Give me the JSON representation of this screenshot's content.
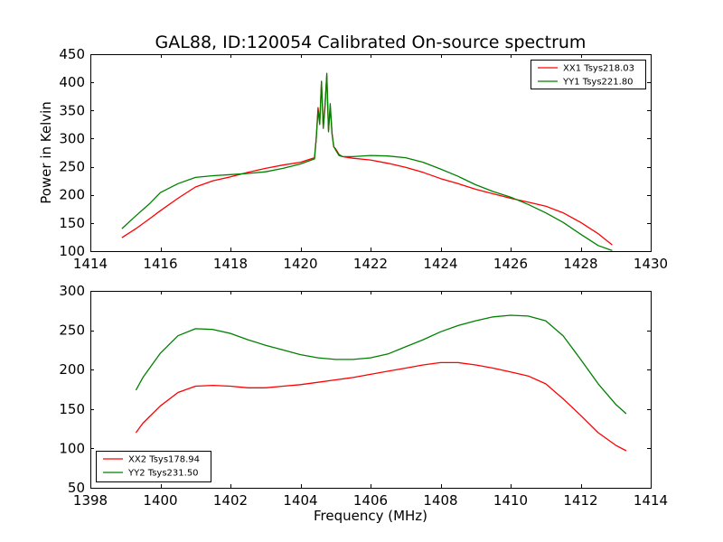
{
  "title": "GAL88, ID:120054 Calibrated On-source spectrum",
  "chart_data": [
    {
      "type": "line",
      "title": "GAL88, ID:120054 Calibrated On-source spectrum",
      "xlabel": "",
      "ylabel": "Power in Kelvin",
      "xlim": [
        1414,
        1430
      ],
      "ylim": [
        100,
        450
      ],
      "xticks": [
        1414,
        1416,
        1418,
        1420,
        1422,
        1424,
        1426,
        1428,
        1430
      ],
      "yticks": [
        100,
        150,
        200,
        250,
        300,
        350,
        400,
        450
      ],
      "legend_position": "upper-right",
      "grid": false,
      "series": [
        {
          "name": "XX1 Tsys218.03",
          "color": "#ff0000",
          "x": [
            1414.9,
            1415.3,
            1415.7,
            1416.0,
            1416.5,
            1417.0,
            1417.5,
            1418.0,
            1418.5,
            1419.0,
            1419.5,
            1420.0,
            1420.4,
            1420.45,
            1420.5,
            1420.55,
            1420.6,
            1420.65,
            1420.7,
            1420.75,
            1420.8,
            1420.85,
            1420.9,
            1420.95,
            1421.0,
            1421.1,
            1421.2,
            1421.5,
            1422.0,
            1422.5,
            1423.0,
            1423.5,
            1424.0,
            1424.5,
            1425.0,
            1425.5,
            1426.0,
            1426.5,
            1427.0,
            1427.5,
            1428.0,
            1428.5,
            1428.9
          ],
          "y": [
            124,
            140,
            158,
            172,
            194,
            214,
            225,
            232,
            240,
            247,
            253,
            258,
            266,
            300,
            355,
            330,
            400,
            320,
            360,
            412,
            315,
            355,
            310,
            285,
            282,
            272,
            268,
            265,
            262,
            256,
            249,
            240,
            229,
            220,
            210,
            202,
            194,
            187,
            180,
            168,
            151,
            131,
            111
          ]
        },
        {
          "name": "YY1 Tsys221.80",
          "color": "#008000",
          "x": [
            1414.9,
            1415.3,
            1415.7,
            1416.0,
            1416.5,
            1417.0,
            1417.5,
            1418.0,
            1418.5,
            1419.0,
            1419.5,
            1420.0,
            1420.4,
            1420.45,
            1420.5,
            1420.55,
            1420.6,
            1420.65,
            1420.7,
            1420.75,
            1420.8,
            1420.85,
            1420.9,
            1420.95,
            1421.0,
            1421.1,
            1421.2,
            1421.5,
            1422.0,
            1422.5,
            1423.0,
            1423.5,
            1424.0,
            1424.5,
            1425.0,
            1425.5,
            1426.0,
            1426.5,
            1427.0,
            1427.5,
            1428.0,
            1428.5,
            1428.9
          ],
          "y": [
            140,
            163,
            185,
            204,
            220,
            231,
            234,
            236,
            238,
            241,
            247,
            255,
            264,
            300,
            350,
            325,
            402,
            318,
            355,
            416,
            312,
            362,
            308,
            286,
            280,
            270,
            268,
            268,
            270,
            269,
            266,
            258,
            246,
            233,
            218,
            206,
            196,
            183,
            168,
            151,
            130,
            110,
            101
          ]
        }
      ]
    },
    {
      "type": "line",
      "title": "",
      "xlabel": "Frequency (MHz)",
      "ylabel": "",
      "xlim": [
        1398,
        1414
      ],
      "ylim": [
        50,
        300
      ],
      "xticks": [
        1398,
        1400,
        1402,
        1404,
        1406,
        1408,
        1410,
        1412,
        1414
      ],
      "yticks": [
        50,
        100,
        150,
        200,
        250,
        300
      ],
      "legend_position": "lower-left",
      "grid": false,
      "series": [
        {
          "name": "XX2 Tsys178.94",
          "color": "#ff0000",
          "x": [
            1399.3,
            1399.5,
            1400.0,
            1400.5,
            1401.0,
            1401.5,
            1402.0,
            1402.5,
            1403.0,
            1403.5,
            1404.0,
            1404.5,
            1405.0,
            1405.5,
            1406.0,
            1406.5,
            1407.0,
            1407.5,
            1408.0,
            1408.5,
            1409.0,
            1409.5,
            1410.0,
            1410.5,
            1411.0,
            1411.5,
            1412.0,
            1412.5,
            1413.0,
            1413.3
          ],
          "y": [
            120,
            132,
            154,
            171,
            179,
            180,
            179,
            177,
            177,
            179,
            181,
            184,
            187,
            190,
            194,
            198,
            202,
            206,
            209,
            209,
            206,
            202,
            197,
            192,
            182,
            163,
            142,
            120,
            104,
            97
          ]
        },
        {
          "name": "YY2 Tsys231.50",
          "color": "#008000",
          "x": [
            1399.3,
            1399.5,
            1400.0,
            1400.5,
            1401.0,
            1401.5,
            1402.0,
            1402.5,
            1403.0,
            1403.5,
            1404.0,
            1404.5,
            1405.0,
            1405.5,
            1406.0,
            1406.5,
            1407.0,
            1407.5,
            1408.0,
            1408.5,
            1409.0,
            1409.5,
            1410.0,
            1410.5,
            1411.0,
            1411.5,
            1412.0,
            1412.5,
            1413.0,
            1413.3
          ],
          "y": [
            174,
            190,
            221,
            243,
            252,
            251,
            246,
            238,
            231,
            225,
            219,
            215,
            213,
            213,
            215,
            220,
            229,
            238,
            248,
            256,
            262,
            267,
            269,
            268,
            262,
            243,
            213,
            182,
            156,
            144
          ]
        }
      ]
    }
  ]
}
